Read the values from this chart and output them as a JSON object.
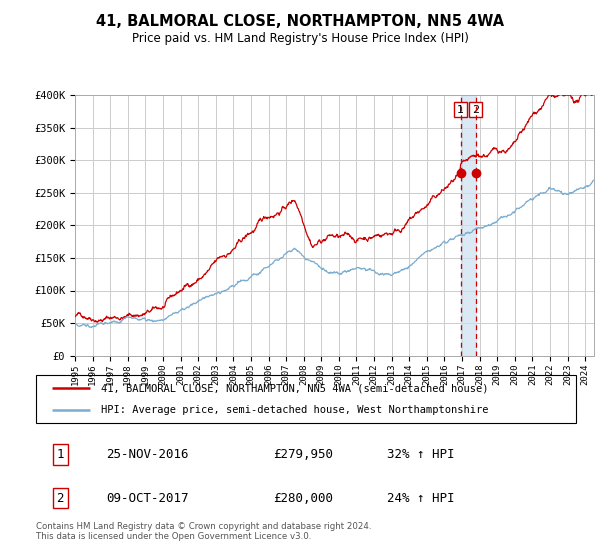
{
  "title": "41, BALMORAL CLOSE, NORTHAMPTON, NN5 4WA",
  "subtitle": "Price paid vs. HM Land Registry's House Price Index (HPI)",
  "ylim": [
    0,
    400000
  ],
  "xlim_start": 1995.0,
  "xlim_end": 2024.5,
  "red_color": "#cc0000",
  "blue_color": "#7aadcf",
  "sale1_x": 2016.92,
  "sale1_y": 279950,
  "sale2_x": 2017.78,
  "sale2_y": 280000,
  "legend1": "41, BALMORAL CLOSE, NORTHAMPTON, NN5 4WA (semi-detached house)",
  "legend2": "HPI: Average price, semi-detached house, West Northamptonshire",
  "table_row1_num": "1",
  "table_row1_date": "25-NOV-2016",
  "table_row1_price": "£279,950",
  "table_row1_hpi": "32% ↑ HPI",
  "table_row2_num": "2",
  "table_row2_date": "09-OCT-2017",
  "table_row2_price": "£280,000",
  "table_row2_hpi": "24% ↑ HPI",
  "footer": "Contains HM Land Registry data © Crown copyright and database right 2024.\nThis data is licensed under the Open Government Licence v3.0.",
  "background_color": "#ffffff",
  "grid_color": "#cccccc"
}
